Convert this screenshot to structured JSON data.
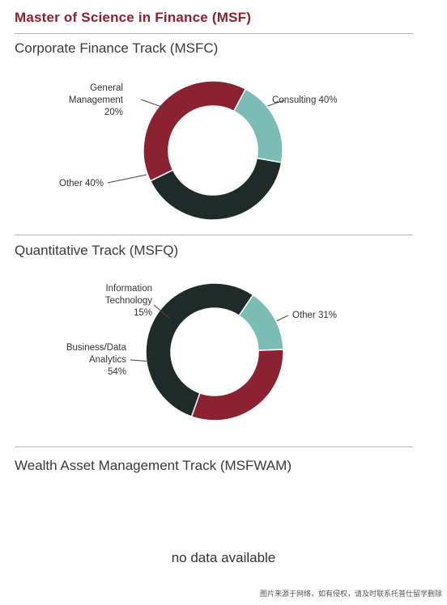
{
  "page_title": "Master of Science in Finance (MSF)",
  "sections": [
    {
      "title": "Corporate Finance Track (MSFC)"
    },
    {
      "title": "Quantitative Track (MSFQ)"
    },
    {
      "title": "Wealth Asset Management Track (MSFWAM)",
      "empty_text": "no data available"
    }
  ],
  "watermark": "图片来源于网络，如有侵权，请及时联系托普仕留学删除",
  "colors": {
    "dark": "#1f2b28",
    "red": "#8b2232",
    "teal": "#7bbcb4",
    "title": "#8b2232"
  },
  "chart_data": [
    {
      "type": "pie",
      "title": "Corporate Finance Track (MSFC)",
      "slices": [
        {
          "label_lines": [
            "Consulting 40%"
          ],
          "value": 40,
          "color": "#1f2b28"
        },
        {
          "label_lines": [
            "Other 40%"
          ],
          "value": 40,
          "color": "#8b2232"
        },
        {
          "label_lines": [
            "General",
            "Management",
            "20%"
          ],
          "value": 20,
          "color": "#7bbcb4"
        }
      ]
    },
    {
      "type": "pie",
      "title": "Quantitative Track (MSFQ)",
      "slices": [
        {
          "label_lines": [
            "Other 31%"
          ],
          "value": 31,
          "color": "#8b2232"
        },
        {
          "label_lines": [
            "Business/Data",
            "Analytics",
            "54%"
          ],
          "value": 54,
          "color": "#1f2b28"
        },
        {
          "label_lines": [
            "Information",
            "Technology",
            "15%"
          ],
          "value": 15,
          "color": "#7bbcb4"
        }
      ]
    }
  ]
}
